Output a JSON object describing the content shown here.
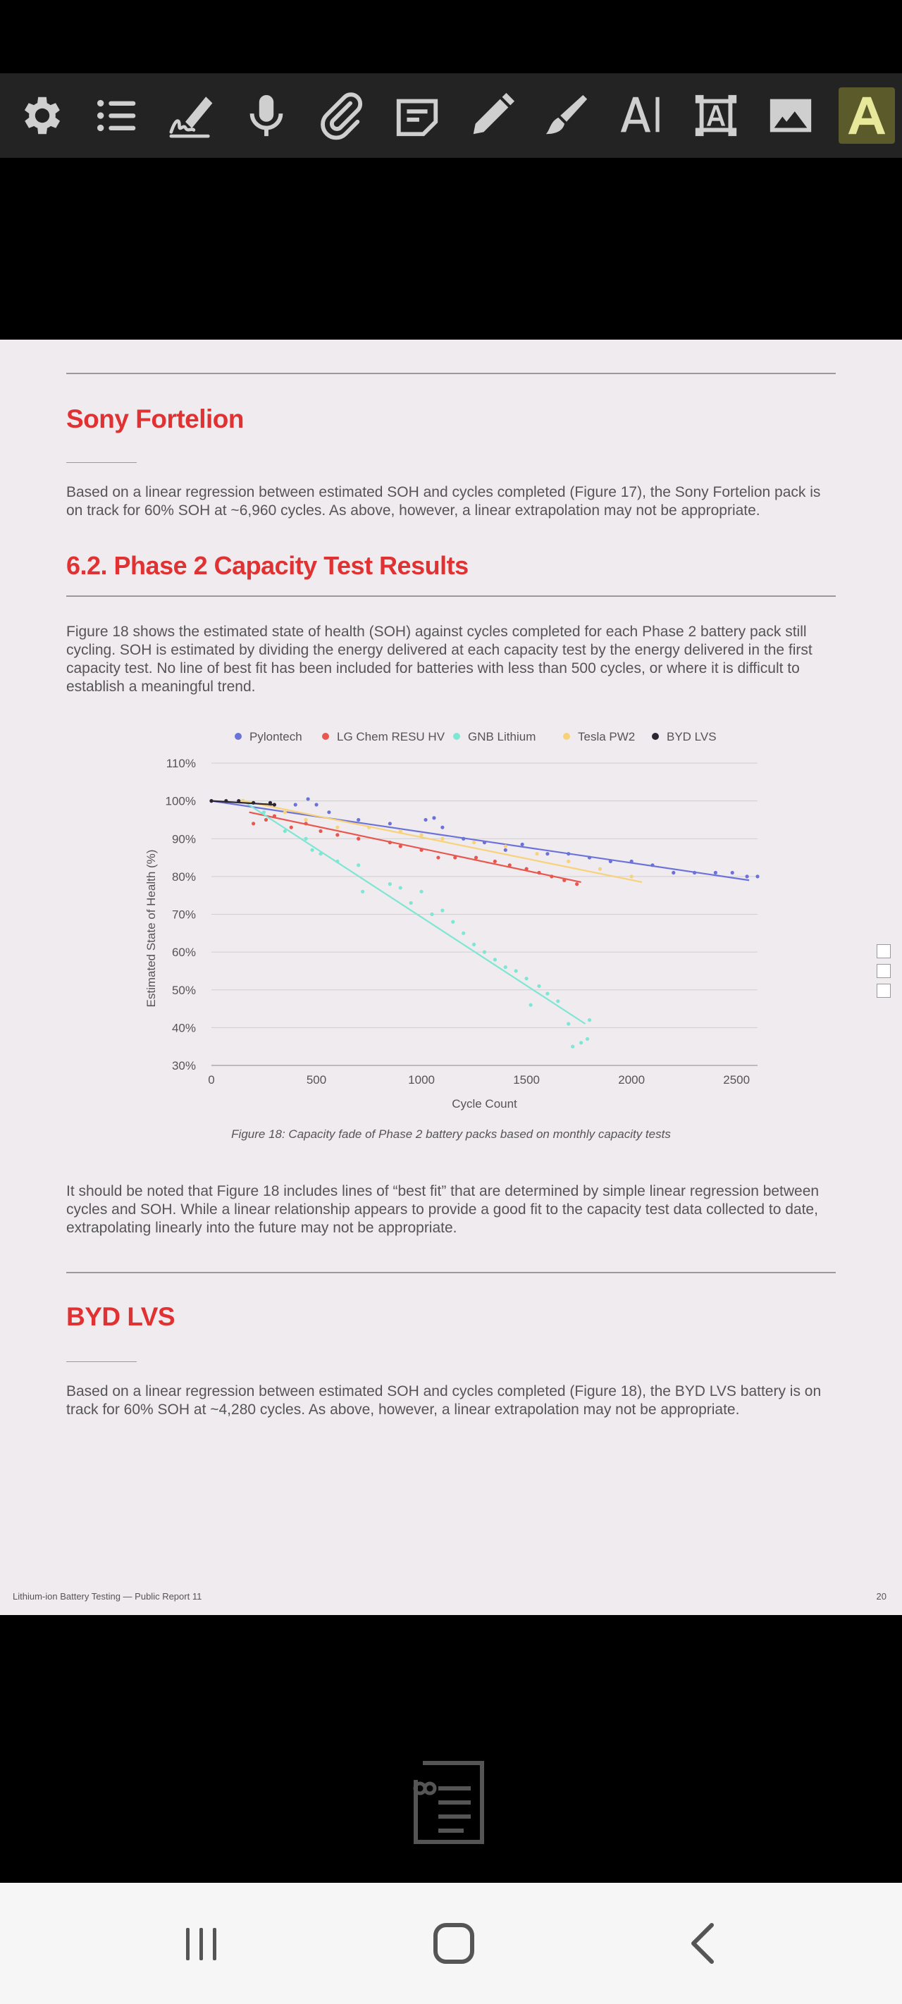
{
  "toolbar": {
    "tools": [
      {
        "icon": "gear-icon",
        "label": "Settings"
      },
      {
        "icon": "list-icon",
        "label": "Outline"
      },
      {
        "icon": "signature-icon",
        "label": "Sign"
      },
      {
        "icon": "microphone-icon",
        "label": "Voice"
      },
      {
        "icon": "paperclip-icon",
        "label": "Attach"
      },
      {
        "icon": "note-icon",
        "label": "Note"
      },
      {
        "icon": "pencil-icon",
        "label": "Pencil"
      },
      {
        "icon": "brush-icon",
        "label": "Brush"
      },
      {
        "icon": "text-cursor-icon",
        "label": "Text"
      },
      {
        "icon": "textbox-icon",
        "label": "Text box"
      },
      {
        "icon": "image-icon",
        "label": "Image"
      },
      {
        "icon": "highlight-text-icon",
        "label": "Highlight"
      }
    ]
  },
  "document": {
    "section1": {
      "heading": "Sony Fortelion",
      "body_line1": "Based on a linear regression between estimated SOH and cycles completed (Figure 17), the Sony Fortelion pack is",
      "body_line2": "on track for 60% SOH at ~6,960 cycles. As above, however, a linear extrapolation may not be appropriate."
    },
    "section2": {
      "heading": "6.2.  Phase 2 Capacity Test Results",
      "body_line1": "Figure 18 shows the estimated state of health (SOH) against cycles completed for each Phase 2 battery pack still",
      "body_line2": "cycling. SOH is estimated by dividing the energy delivered at each capacity test by the energy delivered in the first",
      "body_line3": "capacity test. No line of best fit has been included for batteries with less than 500 cycles, or where it is difficult to",
      "body_line4": "establish a meaningful trend."
    },
    "figure_caption": "Figure 18: Capacity fade of Phase 2 battery packs based on monthly capacity tests",
    "after_figure": {
      "line1": "It should be noted that Figure 18 includes lines of “best fit” that are determined by simple linear regression between",
      "line2": "cycles and SOH. While a linear relationship appears to provide a good fit to the capacity test data collected to date,",
      "line3": "extrapolating linearly into the future may not be appropriate."
    },
    "section3": {
      "heading": "BYD LVS",
      "body_line1": "Based on a linear regression between estimated SOH and cycles completed (Figure 18), the BYD LVS battery is on",
      "body_line2": "track for 60% SOH at ~4,280 cycles. As above, however, a linear extrapolation may not be appropriate."
    },
    "footer_left": "Lithium-ion Battery Testing — Public Report 11",
    "page_number": "20"
  },
  "chart_data": {
    "type": "scatter",
    "xlabel": "Cycle Count",
    "ylabel": "Estimated State of Health (%)",
    "xlim": [
      0,
      2600
    ],
    "ylim": [
      30,
      110
    ],
    "x_ticks": [
      0,
      500,
      1000,
      1500,
      2000,
      2500
    ],
    "x_tick_labels": [
      "0",
      "500",
      "1000",
      "1500",
      "2000",
      "2500"
    ],
    "y_ticks": [
      30,
      40,
      50,
      60,
      70,
      80,
      90,
      100,
      110
    ],
    "y_tick_labels": [
      "30%",
      "40%",
      "50%",
      "60%",
      "70%",
      "80%",
      "90%",
      "100%",
      "110%"
    ],
    "grid": true,
    "legend_position": "top",
    "series": [
      {
        "name": "Pylontech",
        "color": "#6b72d9",
        "points": [
          [
            0,
            100
          ],
          [
            150,
            100
          ],
          [
            280,
            99
          ],
          [
            400,
            99
          ],
          [
            460,
            100.5
          ],
          [
            500,
            99
          ],
          [
            560,
            97
          ],
          [
            700,
            95
          ],
          [
            850,
            94
          ],
          [
            1020,
            95
          ],
          [
            1060,
            95.5
          ],
          [
            1100,
            93
          ],
          [
            1200,
            90
          ],
          [
            1300,
            89
          ],
          [
            1400,
            87
          ],
          [
            1480,
            88.5
          ],
          [
            1600,
            86
          ],
          [
            1700,
            86
          ],
          [
            1800,
            85
          ],
          [
            1900,
            84
          ],
          [
            2000,
            84
          ],
          [
            2100,
            83
          ],
          [
            2200,
            81
          ],
          [
            2300,
            81
          ],
          [
            2400,
            81
          ],
          [
            2480,
            81
          ],
          [
            2550,
            80
          ],
          [
            2600,
            80
          ]
        ],
        "fit": [
          [
            0,
            100
          ],
          [
            2560,
            79
          ]
        ]
      },
      {
        "name": "LG Chem RESU HV",
        "color": "#e8574f",
        "points": [
          [
            200,
            94
          ],
          [
            260,
            95
          ],
          [
            300,
            96
          ],
          [
            380,
            93
          ],
          [
            450,
            94
          ],
          [
            520,
            92
          ],
          [
            600,
            91
          ],
          [
            700,
            90
          ],
          [
            850,
            89
          ],
          [
            900,
            88
          ],
          [
            1000,
            87
          ],
          [
            1080,
            85
          ],
          [
            1160,
            85
          ],
          [
            1260,
            85
          ],
          [
            1350,
            84
          ],
          [
            1420,
            83
          ],
          [
            1500,
            82
          ],
          [
            1560,
            81
          ],
          [
            1620,
            80
          ],
          [
            1680,
            79
          ],
          [
            1740,
            78
          ]
        ],
        "fit": [
          [
            180,
            97
          ],
          [
            1760,
            78.5
          ]
        ]
      },
      {
        "name": "GNB Lithium",
        "color": "#7ee6d2",
        "points": [
          [
            150,
            100
          ],
          [
            250,
            97
          ],
          [
            350,
            92
          ],
          [
            450,
            90
          ],
          [
            480,
            87
          ],
          [
            520,
            86
          ],
          [
            600,
            84
          ],
          [
            700,
            83
          ],
          [
            720,
            76
          ],
          [
            850,
            78
          ],
          [
            900,
            77
          ],
          [
            950,
            73
          ],
          [
            1000,
            76
          ],
          [
            1050,
            70
          ],
          [
            1100,
            71
          ],
          [
            1150,
            68
          ],
          [
            1200,
            65
          ],
          [
            1250,
            62
          ],
          [
            1300,
            60
          ],
          [
            1350,
            58
          ],
          [
            1400,
            56
          ],
          [
            1450,
            55
          ],
          [
            1500,
            53
          ],
          [
            1520,
            46
          ],
          [
            1560,
            51
          ],
          [
            1600,
            49
          ],
          [
            1650,
            47
          ],
          [
            1700,
            41
          ],
          [
            1720,
            35
          ],
          [
            1760,
            36
          ],
          [
            1790,
            37
          ],
          [
            1800,
            42
          ]
        ],
        "fit": [
          [
            150,
            100
          ],
          [
            1780,
            41
          ]
        ]
      },
      {
        "name": "Tesla PW2",
        "color": "#f7d27a",
        "points": [
          [
            150,
            100
          ],
          [
            260,
            99
          ],
          [
            350,
            97
          ],
          [
            450,
            95
          ],
          [
            600,
            93
          ],
          [
            750,
            93
          ],
          [
            900,
            92
          ],
          [
            1000,
            91
          ],
          [
            1100,
            90
          ],
          [
            1250,
            89
          ],
          [
            1400,
            88
          ],
          [
            1550,
            86
          ],
          [
            1700,
            84
          ],
          [
            1850,
            82
          ],
          [
            2000,
            80
          ]
        ],
        "fit": [
          [
            150,
            100
          ],
          [
            2050,
            78.5
          ]
        ]
      },
      {
        "name": "BYD LVS",
        "color": "#2c2633",
        "points": [
          [
            0,
            100
          ],
          [
            70,
            100
          ],
          [
            130,
            100
          ],
          [
            200,
            99.5
          ],
          [
            280,
            99.5
          ],
          [
            300,
            99
          ]
        ],
        "fit": [
          [
            0,
            100
          ],
          [
            300,
            99
          ]
        ]
      }
    ]
  }
}
